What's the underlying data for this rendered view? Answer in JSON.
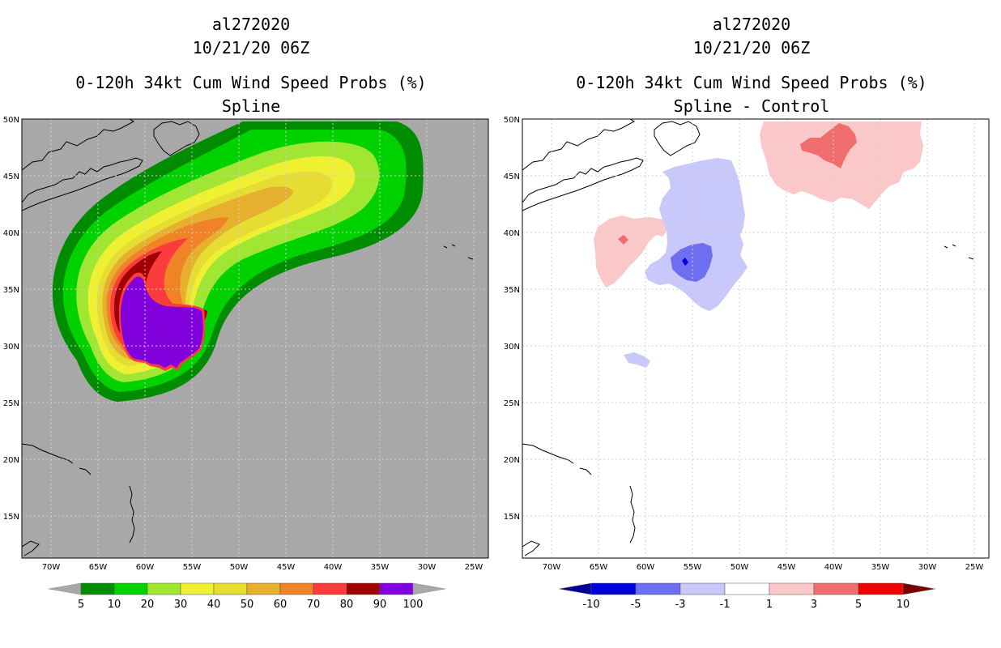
{
  "left_panel": {
    "storm_id": "al272020",
    "datetime": "10/21/20 06Z",
    "title": "0-120h 34kt Cum Wind Speed Probs (%)",
    "subtitle": "Spline",
    "legend": {
      "labels": [
        "5",
        "10",
        "20",
        "30",
        "40",
        "50",
        "60",
        "70",
        "80",
        "90",
        "100"
      ],
      "colors": [
        "#008c00",
        "#00d200",
        "#a0e632",
        "#f0f032",
        "#e6dc32",
        "#e6af2d",
        "#f08228",
        "#fa3c3c",
        "#a00000",
        "#8200dc"
      ],
      "under_color": "#a8a8a8",
      "over_color": "#a8a8a8"
    }
  },
  "right_panel": {
    "storm_id": "al272020",
    "datetime": "10/21/20 06Z",
    "title": "0-120h 34kt Cum Wind Speed Probs (%)",
    "subtitle": "Spline - Control",
    "legend": {
      "labels": [
        "-10",
        "-5",
        "-3",
        "-1",
        "1",
        "3",
        "5",
        "10"
      ],
      "colors": [
        "#0000dc",
        "#6e6ef0",
        "#c8c8fa",
        "#ffffff",
        "#fac8c8",
        "#f06e6e",
        "#f00000"
      ],
      "under_color": "#000096",
      "over_color": "#780000"
    }
  },
  "axes": {
    "lon_labels": [
      "70W",
      "65W",
      "60W",
      "55W",
      "50W",
      "45W",
      "40W",
      "35W",
      "30W",
      "25W"
    ],
    "lat_labels": [
      "50N",
      "45N",
      "40N",
      "35N",
      "30N",
      "25N",
      "20N",
      "15N"
    ]
  },
  "colors": {
    "land_background": "#a8a8a8",
    "grid": "#d0d0d0",
    "coast": "#000000"
  }
}
